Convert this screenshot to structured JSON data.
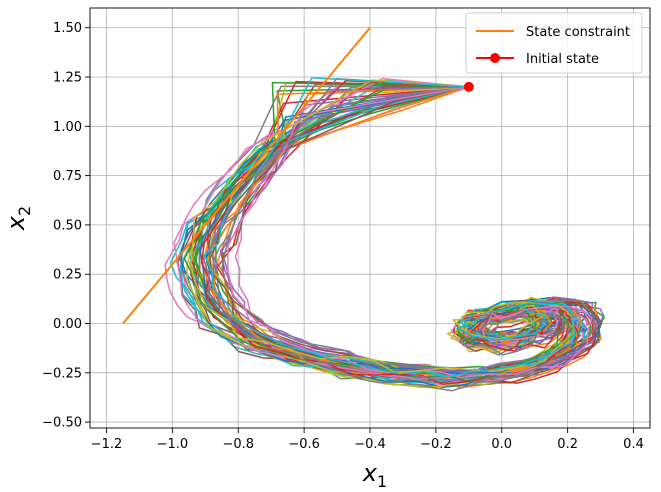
{
  "chart_data": {
    "type": "line",
    "xlabel": "x",
    "xlabel_sub": "1",
    "ylabel": "x",
    "ylabel_sub": "2",
    "xlim": [
      -1.25,
      0.45
    ],
    "ylim": [
      -0.53,
      1.6
    ],
    "xticks": [
      -1.2,
      -1.0,
      -0.8,
      -0.6,
      -0.4,
      -0.2,
      0.0,
      0.2,
      0.4
    ],
    "xtick_labels": [
      "−1.2",
      "−1.0",
      "−0.8",
      "−0.6",
      "−0.4",
      "−0.2",
      "0.0",
      "0.2",
      "0.4"
    ],
    "yticks": [
      -0.5,
      -0.25,
      0.0,
      0.25,
      0.5,
      0.75,
      1.0,
      1.25,
      1.5
    ],
    "ytick_labels": [
      "−0.50",
      "−0.25",
      "0.00",
      "0.25",
      "0.50",
      "0.75",
      "1.00",
      "1.25",
      "1.50"
    ],
    "grid": true,
    "legend_position": "top-right",
    "legend": [
      {
        "label": "State constraint",
        "color": "#ff7f0e",
        "marker": "line"
      },
      {
        "label": "Initial state",
        "color": "#ff0000",
        "marker": "dot"
      }
    ],
    "state_constraint": {
      "x": [
        -1.15,
        -0.4
      ],
      "y": [
        0.0,
        1.5
      ],
      "color": "#ff7f0e"
    },
    "initial_state": {
      "x": -0.1,
      "y": 1.2,
      "color": "#ff0000"
    },
    "trajectory_colors": [
      "#1f77b4",
      "#ff7f0e",
      "#2ca02c",
      "#d62728",
      "#9467bd",
      "#8c564b",
      "#e377c2",
      "#7f7f7f",
      "#bcbd22",
      "#17becf"
    ],
    "trajectory_count": 50,
    "trajectory_shape": {
      "start": [
        -0.1,
        1.2
      ],
      "x": [
        -0.1,
        -0.5,
        -0.7,
        -0.8,
        -0.88,
        -0.92,
        -0.9,
        -0.85,
        -0.75,
        -0.6,
        -0.45,
        -0.3,
        -0.15,
        0.0,
        0.15,
        0.24,
        0.26,
        0.22,
        0.13,
        0.02,
        -0.06,
        -0.1,
        -0.06,
        0.02,
        0.1,
        0.15,
        0.15,
        0.1
      ],
      "y": [
        1.2,
        1.12,
        0.88,
        0.68,
        0.5,
        0.32,
        0.16,
        0.03,
        -0.09,
        -0.17,
        -0.22,
        -0.26,
        -0.28,
        -0.26,
        -0.2,
        -0.1,
        0.0,
        0.07,
        0.08,
        0.05,
        0.02,
        -0.04,
        -0.09,
        -0.1,
        -0.07,
        -0.01,
        0.05,
        0.06
      ]
    }
  }
}
